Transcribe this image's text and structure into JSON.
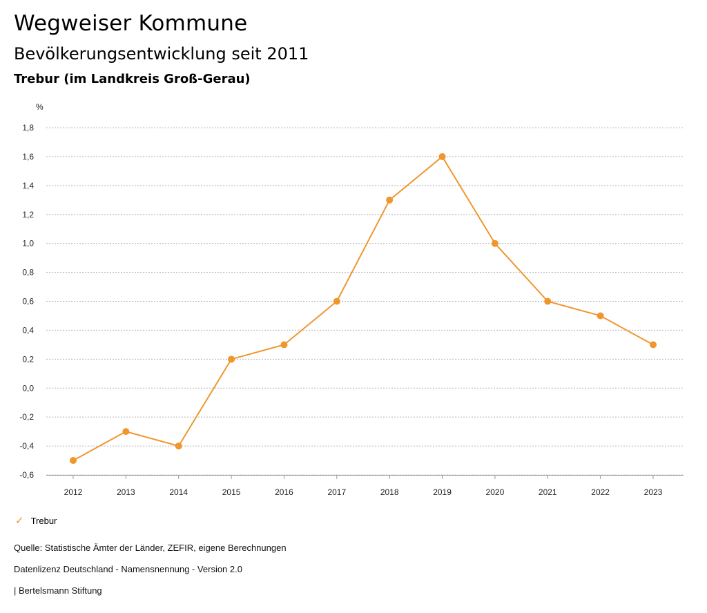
{
  "header": {
    "title": "Wegweiser Kommune",
    "subtitle": "Bevölkerungsentwicklung seit 2011",
    "region": "Trebur (im Landkreis Groß-Gerau)"
  },
  "chart_data": {
    "type": "line",
    "title": "Bevölkerungsentwicklung seit 2011",
    "ylabel": "%",
    "xlabel": "",
    "categories": [
      "2012",
      "2013",
      "2014",
      "2015",
      "2016",
      "2017",
      "2018",
      "2019",
      "2020",
      "2021",
      "2022",
      "2023"
    ],
    "series": [
      {
        "name": "Trebur",
        "values": [
          -0.5,
          -0.3,
          -0.4,
          0.2,
          0.3,
          0.6,
          1.3,
          1.6,
          1.0,
          0.6,
          0.5,
          0.3
        ]
      }
    ],
    "ylim": [
      -0.6,
      1.8
    ],
    "yticks": [
      "-0,6",
      "-0,4",
      "-0,2",
      "0,0",
      "0,2",
      "0,4",
      "0,6",
      "0,8",
      "1,0",
      "1,2",
      "1,4",
      "1,6",
      "1,8"
    ],
    "ytick_values": [
      -0.6,
      -0.4,
      -0.2,
      0.0,
      0.2,
      0.4,
      0.6,
      0.8,
      1.0,
      1.2,
      1.4,
      1.6,
      1.8
    ],
    "grid": true,
    "color": "#f0962d"
  },
  "legend": {
    "label": "Trebur",
    "icon": "check-icon"
  },
  "footer": {
    "source": "Quelle: Statistische Ämter der Länder, ZEFIR, eigene Berechnungen",
    "license": "Datenlizenz Deutschland - Namensnennung - Version 2.0",
    "publisher": "| Bertelsmann Stiftung"
  }
}
